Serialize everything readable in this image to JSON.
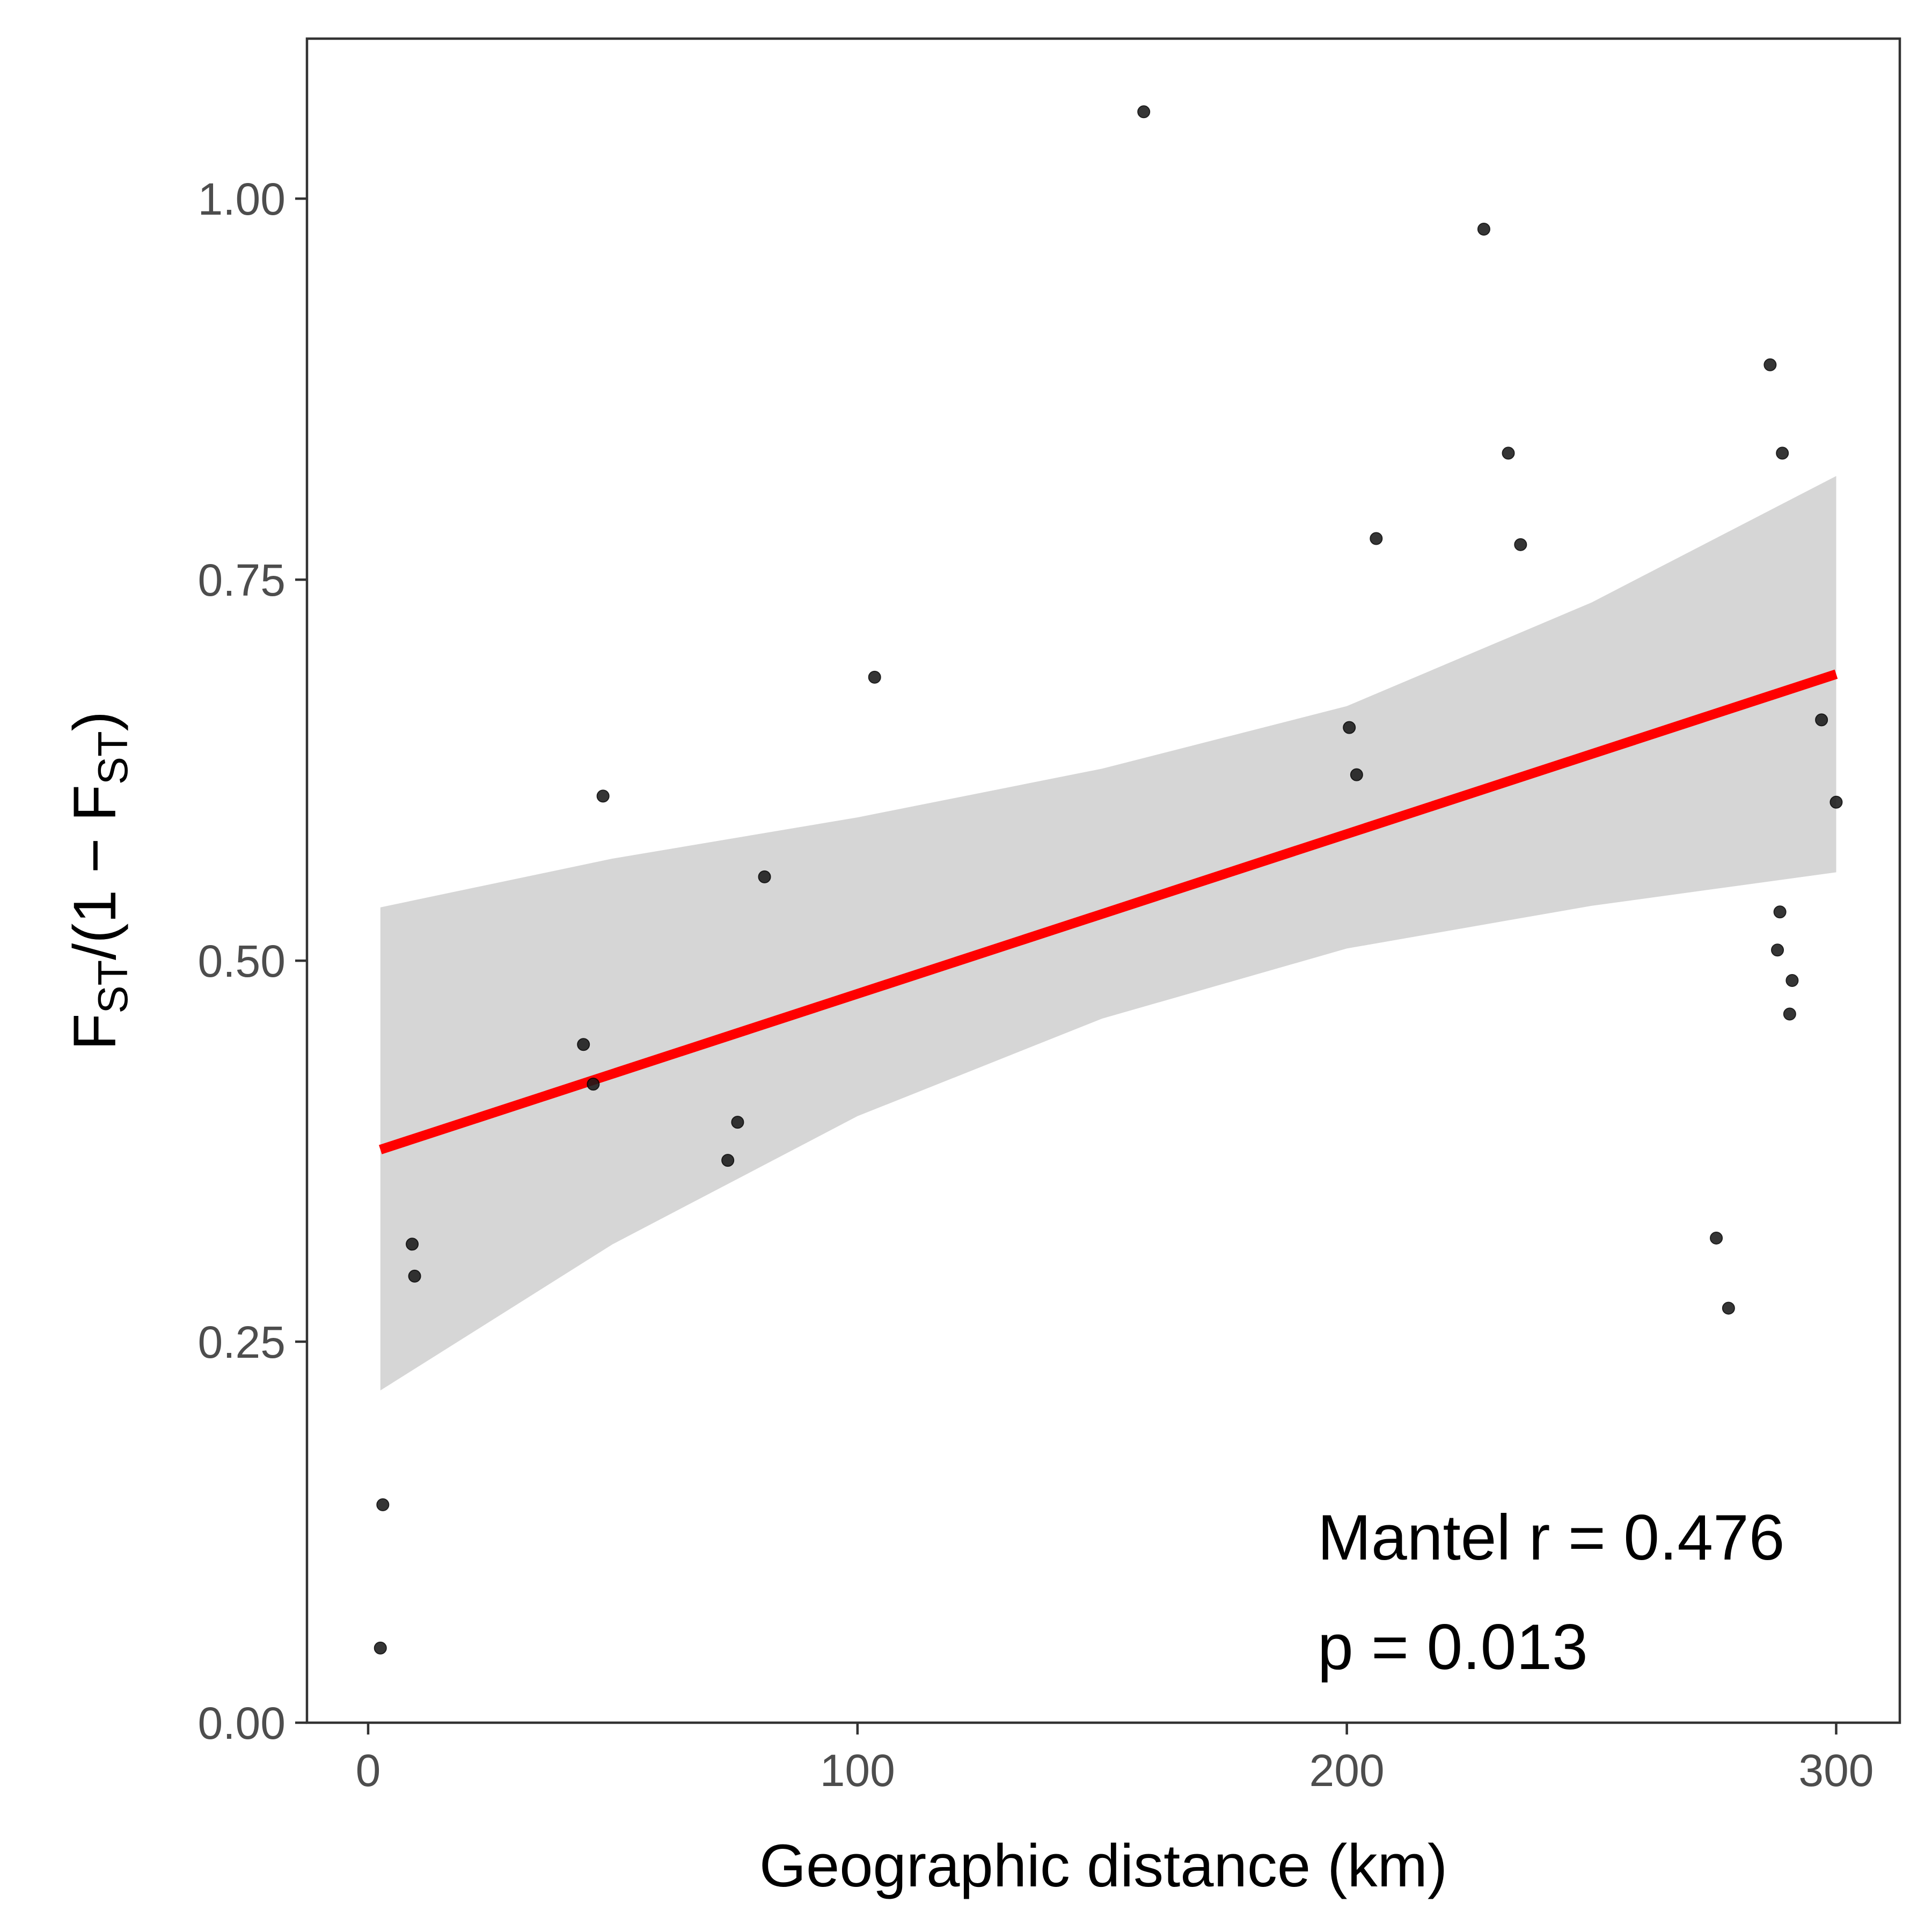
{
  "chart_data": {
    "type": "scatter",
    "xlabel": "Geographic distance (km)",
    "ylabel": {
      "parts": [
        {
          "text": "F",
          "sub": false
        },
        {
          "text": "ST",
          "sub": true
        },
        {
          "text": "/(1 − F",
          "sub": false
        },
        {
          "text": "ST",
          "sub": true
        },
        {
          "text": ")",
          "sub": false
        }
      ]
    },
    "xlim": [
      -12.5,
      313
    ],
    "ylim": [
      0,
      1.105
    ],
    "x_ticks": [
      {
        "value": 0,
        "label": "0"
      },
      {
        "value": 100,
        "label": "100"
      },
      {
        "value": 200,
        "label": "200"
      },
      {
        "value": 300,
        "label": "300"
      }
    ],
    "y_ticks": [
      {
        "value": 0,
        "label": "0.00"
      },
      {
        "value": 0.25,
        "label": "0.25"
      },
      {
        "value": 0.5,
        "label": "0.50"
      },
      {
        "value": 0.75,
        "label": "0.75"
      },
      {
        "value": 1.0,
        "label": "1.00"
      }
    ],
    "grid": false,
    "points": [
      {
        "x": 2.5,
        "y": 0.049
      },
      {
        "x": 3.0,
        "y": 0.143
      },
      {
        "x": 9.0,
        "y": 0.314
      },
      {
        "x": 9.5,
        "y": 0.293
      },
      {
        "x": 44.0,
        "y": 0.445
      },
      {
        "x": 46.0,
        "y": 0.419
      },
      {
        "x": 48.0,
        "y": 0.608
      },
      {
        "x": 73.5,
        "y": 0.369
      },
      {
        "x": 75.5,
        "y": 0.394
      },
      {
        "x": 81.0,
        "y": 0.555
      },
      {
        "x": 103.5,
        "y": 0.686
      },
      {
        "x": 158.5,
        "y": 1.057
      },
      {
        "x": 200.5,
        "y": 0.653
      },
      {
        "x": 202.0,
        "y": 0.622
      },
      {
        "x": 206.0,
        "y": 0.777
      },
      {
        "x": 228.0,
        "y": 0.98
      },
      {
        "x": 233.0,
        "y": 0.833
      },
      {
        "x": 235.5,
        "y": 0.773
      },
      {
        "x": 275.5,
        "y": 0.318
      },
      {
        "x": 278.0,
        "y": 0.272
      },
      {
        "x": 286.5,
        "y": 0.891
      },
      {
        "x": 288.0,
        "y": 0.507
      },
      {
        "x": 288.5,
        "y": 0.532
      },
      {
        "x": 289.0,
        "y": 0.833
      },
      {
        "x": 290.5,
        "y": 0.465
      },
      {
        "x": 291.0,
        "y": 0.487
      },
      {
        "x": 297.0,
        "y": 0.658
      },
      {
        "x": 300.0,
        "y": 0.604
      }
    ],
    "fit_line": {
      "color": "#ff0000",
      "x": [
        2.5,
        300
      ],
      "y": [
        0.376,
        0.688
      ]
    },
    "confidence_band": {
      "color": "#d6d6d6",
      "x": [
        2.5,
        50,
        100,
        150,
        200,
        250,
        300
      ],
      "upper": [
        0.535,
        0.567,
        0.594,
        0.626,
        0.667,
        0.735,
        0.818
      ],
      "lower": [
        0.218,
        0.314,
        0.398,
        0.462,
        0.508,
        0.536,
        0.558
      ]
    },
    "annotations": [
      "Mantel r = 0.476",
      "p = 0.013"
    ]
  }
}
